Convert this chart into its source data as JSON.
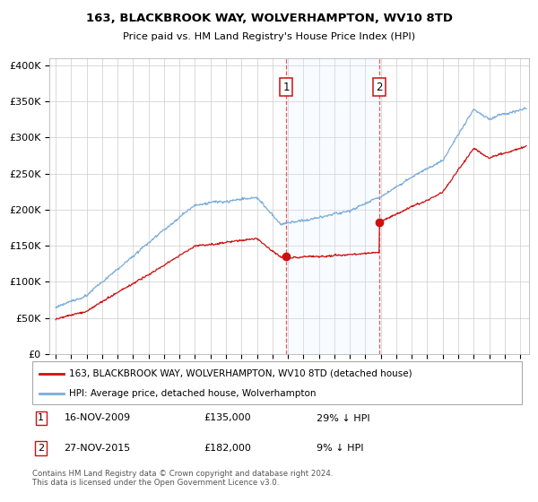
{
  "title": "163, BLACKBROOK WAY, WOLVERHAMPTON, WV10 8TD",
  "subtitle": "Price paid vs. HM Land Registry's House Price Index (HPI)",
  "ylim": [
    0,
    400000
  ],
  "xlim_start": 1994.6,
  "xlim_end": 2025.6,
  "hpi_color": "#7aaddb",
  "price_color": "#cc1111",
  "sale1_date": 2009.88,
  "sale1_price": 135000,
  "sale2_date": 2015.92,
  "sale2_price": 182000,
  "legend_line1": "163, BLACKBROOK WAY, WOLVERHAMPTON, WV10 8TD (detached house)",
  "legend_line2": "HPI: Average price, detached house, Wolverhampton",
  "footnote": "Contains HM Land Registry data © Crown copyright and database right 2024.\nThis data is licensed under the Open Government Licence v3.0.",
  "shade_color": "#ddeeff",
  "grid_color": "#cccccc"
}
